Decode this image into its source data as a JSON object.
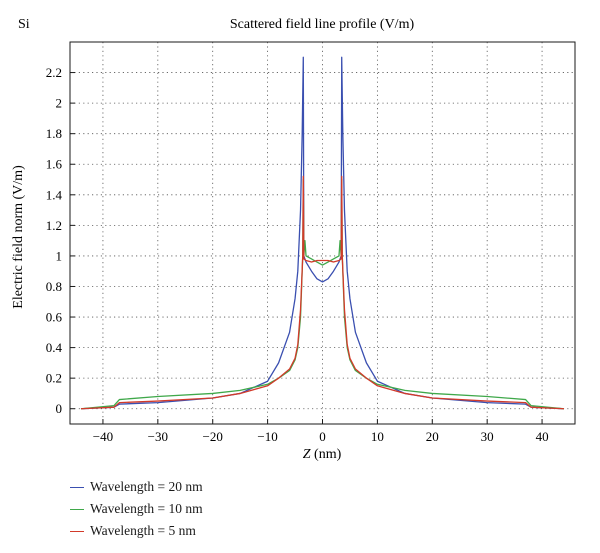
{
  "panel_label": "Si",
  "chart_data": {
    "type": "line",
    "title": "Scattered field line profile (V/m)",
    "xlabel_italic": "Z",
    "xlabel_rest": " (nm)",
    "ylabel": "Electric field norm (V/m)",
    "xlim": [
      -46,
      46
    ],
    "ylim": [
      -0.1,
      2.4
    ],
    "xticks": [
      -40,
      -30,
      -20,
      -10,
      0,
      10,
      20,
      30,
      40
    ],
    "yticks": [
      0,
      0.2,
      0.4,
      0.6,
      0.8,
      1,
      1.2,
      1.4,
      1.6,
      1.8,
      2,
      2.2
    ],
    "xtick_labels": [
      "−40",
      "−30",
      "−20",
      "−10",
      "0",
      "10",
      "20",
      "30",
      "40"
    ],
    "ytick_labels": [
      "0",
      "0.2",
      "0.4",
      "0.6",
      "0.8",
      "1",
      "1.2",
      "1.4",
      "1.6",
      "1.8",
      "2",
      "2.2"
    ],
    "grid": true,
    "legend_position": "below",
    "series": [
      {
        "name": "Wavelength = 20 nm",
        "color": "#3a4fb0",
        "x": [
          -44,
          -38,
          -37,
          -30,
          -20,
          -15,
          -10,
          -8,
          -6,
          -5,
          -4.5,
          -4,
          -3.7,
          -3.5,
          -3.4,
          -3,
          -2,
          -1,
          0,
          1,
          2,
          3,
          3.4,
          3.5,
          3.7,
          4,
          4.5,
          5,
          6,
          8,
          10,
          15,
          20,
          30,
          37,
          38,
          44
        ],
        "y": [
          0,
          0.01,
          0.03,
          0.04,
          0.07,
          0.1,
          0.18,
          0.3,
          0.5,
          0.72,
          0.9,
          1.3,
          1.8,
          2.3,
          1.0,
          0.96,
          0.9,
          0.85,
          0.83,
          0.85,
          0.9,
          0.96,
          1.0,
          2.3,
          1.8,
          1.3,
          0.9,
          0.72,
          0.5,
          0.3,
          0.18,
          0.1,
          0.07,
          0.04,
          0.03,
          0.01,
          0
        ]
      },
      {
        "name": "Wavelength = 10 nm",
        "color": "#3fa84a",
        "x": [
          -44,
          -38,
          -37,
          -30,
          -20,
          -15,
          -10,
          -8,
          -6,
          -5,
          -4.5,
          -4,
          -3.6,
          -3.5,
          -3.4,
          -3.2,
          -3,
          -2,
          -1,
          0,
          1,
          2,
          3,
          3.2,
          3.4,
          3.5,
          3.6,
          4,
          4.5,
          5,
          6,
          8,
          10,
          15,
          20,
          30,
          37,
          38,
          44
        ],
        "y": [
          0,
          0.02,
          0.06,
          0.08,
          0.1,
          0.12,
          0.16,
          0.2,
          0.25,
          0.32,
          0.4,
          0.6,
          1.0,
          1.5,
          1.0,
          1.1,
          1.0,
          0.98,
          0.96,
          0.94,
          0.96,
          0.98,
          1.0,
          1.1,
          1.0,
          1.5,
          1.0,
          0.6,
          0.4,
          0.32,
          0.25,
          0.2,
          0.16,
          0.12,
          0.1,
          0.08,
          0.06,
          0.02,
          0
        ]
      },
      {
        "name": "Wavelength = 5 nm",
        "color": "#d23a2a",
        "x": [
          -44,
          -38,
          -37,
          -30,
          -20,
          -15,
          -10,
          -8,
          -6,
          -5,
          -4.5,
          -4,
          -3.6,
          -3.5,
          -3.4,
          -3,
          -2,
          -1,
          0,
          1,
          2,
          3,
          3.4,
          3.5,
          3.6,
          4,
          4.5,
          5,
          6,
          8,
          10,
          15,
          20,
          30,
          37,
          38,
          44
        ],
        "y": [
          0,
          0.01,
          0.04,
          0.05,
          0.07,
          0.1,
          0.15,
          0.2,
          0.26,
          0.33,
          0.42,
          0.65,
          1.0,
          1.52,
          0.98,
          0.97,
          0.96,
          0.97,
          0.97,
          0.97,
          0.96,
          0.97,
          0.98,
          1.52,
          1.0,
          0.65,
          0.42,
          0.33,
          0.26,
          0.2,
          0.15,
          0.1,
          0.07,
          0.05,
          0.04,
          0.01,
          0
        ]
      }
    ]
  }
}
